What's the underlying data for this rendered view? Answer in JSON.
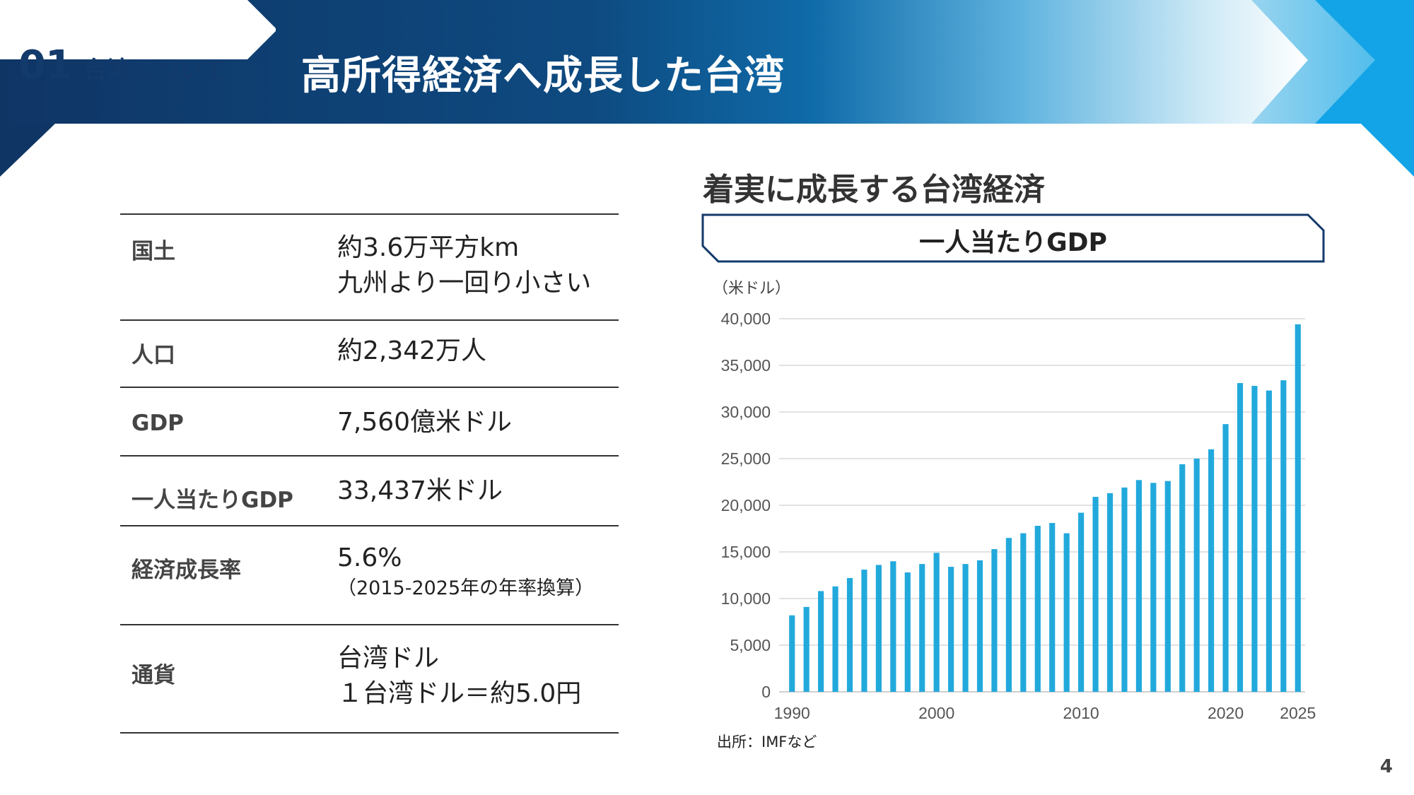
{
  "header": {
    "section_number": "01",
    "section_label": "台湾について",
    "title": "高所得経済へ成長した台湾"
  },
  "colors": {
    "navy": "#123a6b",
    "bar": "#22a9dc",
    "light_blue": "#8fd0ee"
  },
  "info_table": [
    {
      "key": "国土",
      "lines": [
        "約3.6万平方km",
        "九州より一回り小さい"
      ]
    },
    {
      "key": "人口",
      "lines": [
        "約2,342万人"
      ]
    },
    {
      "key": "GDP",
      "lines": [
        "7,560億米ドル"
      ]
    },
    {
      "key": "一人当たりGDP",
      "lines": [
        "33,437米ドル"
      ]
    },
    {
      "key": "経済成長率",
      "lines": [
        "5.6%"
      ],
      "note": "（2015-2025年の年率換算）"
    },
    {
      "key": "通貨",
      "lines": [
        "台湾ドル",
        "１台湾ドル＝約5.0円"
      ]
    }
  ],
  "chart_heading": "着実に成長する台湾経済",
  "chart_data": {
    "type": "bar",
    "title": "一人当たりGDP",
    "ylabel": "（米ドル）",
    "ylim": [
      0,
      40000
    ],
    "yticks": [
      "0",
      "5,000",
      "10,000",
      "15,000",
      "20,000",
      "25,000",
      "30,000",
      "35,000",
      "40,000"
    ],
    "xticks": [
      "1990",
      "2000",
      "2010",
      "2020",
      "2025"
    ],
    "grid": true,
    "categories": [
      1990,
      1991,
      1992,
      1993,
      1994,
      1995,
      1996,
      1997,
      1998,
      1999,
      2000,
      2001,
      2002,
      2003,
      2004,
      2005,
      2006,
      2007,
      2008,
      2009,
      2010,
      2011,
      2012,
      2013,
      2014,
      2015,
      2016,
      2017,
      2018,
      2019,
      2020,
      2021,
      2022,
      2023,
      2024,
      2025
    ],
    "values": [
      8200,
      9100,
      10800,
      11300,
      12200,
      13100,
      13600,
      14000,
      12800,
      13700,
      14900,
      13400,
      13700,
      14100,
      15300,
      16500,
      17000,
      17800,
      18100,
      17000,
      19200,
      20900,
      21300,
      21900,
      22700,
      22400,
      22600,
      24400,
      25000,
      26000,
      28700,
      33100,
      32800,
      32300,
      33400,
      39400
    ]
  },
  "source": "出所：IMFなど",
  "page_number": "4"
}
